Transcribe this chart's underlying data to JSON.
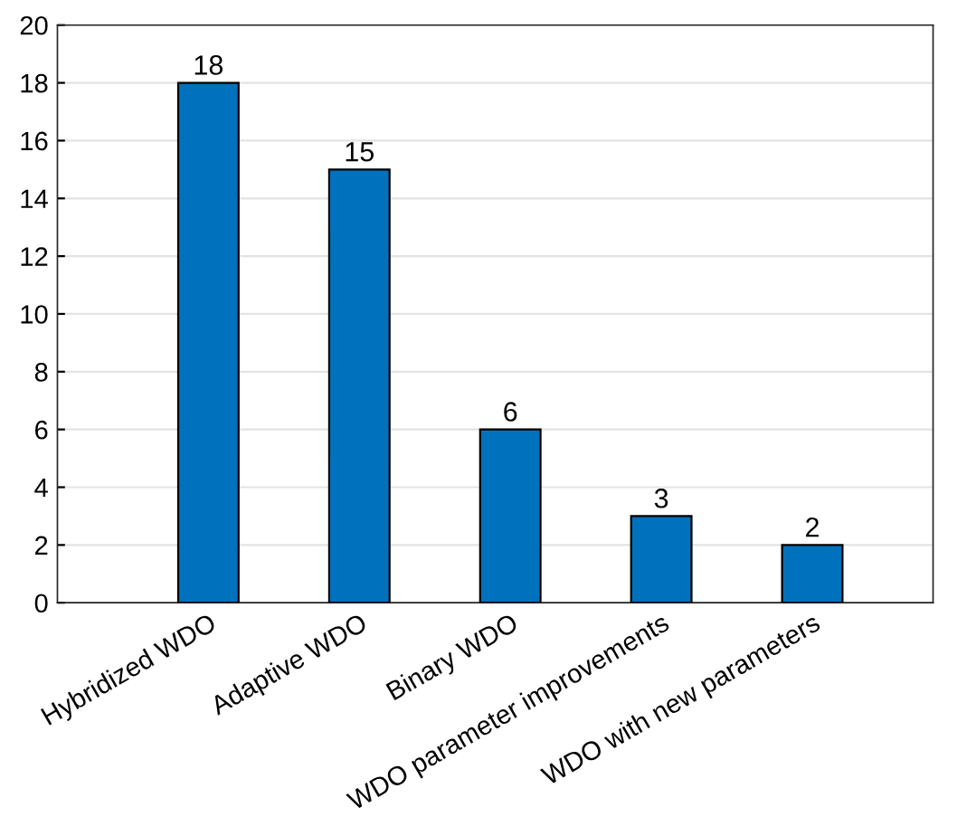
{
  "chart_data": {
    "type": "bar",
    "categories": [
      "Hybridized WDO",
      "Adaptive WDO",
      "Binary WDO",
      "WDO parameter improvements",
      "WDO with new parameters"
    ],
    "values": [
      18,
      15,
      6,
      3,
      2
    ],
    "color": "#0072bd",
    "ylim": [
      0,
      20
    ],
    "yticks": [
      0,
      2,
      4,
      6,
      8,
      10,
      12,
      14,
      16,
      18,
      20
    ],
    "grid": "y",
    "data_labels": true
  }
}
